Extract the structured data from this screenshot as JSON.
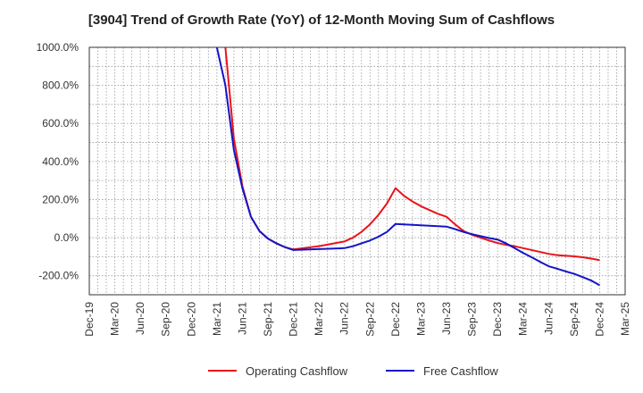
{
  "chart_data": {
    "type": "line",
    "title": "[3904]  Trend of Growth Rate (YoY) of 12-Month Moving Sum of Cashflows",
    "xlabel": "",
    "ylabel": "",
    "ylim": [
      -300,
      1000
    ],
    "grid": true,
    "legend_position": "bottom",
    "y_ticks": [
      "1000.0%",
      "800.0%",
      "600.0%",
      "400.0%",
      "200.0%",
      "0.0%",
      "-200.0%"
    ],
    "y_tick_values": [
      1000,
      800,
      600,
      400,
      200,
      0,
      -200
    ],
    "x_ticks": [
      "Dec-19",
      "Mar-20",
      "Jun-20",
      "Sep-20",
      "Dec-20",
      "Mar-21",
      "Jun-21",
      "Sep-21",
      "Dec-21",
      "Mar-22",
      "Jun-22",
      "Sep-22",
      "Dec-22",
      "Mar-23",
      "Jun-23",
      "Sep-23",
      "Dec-23",
      "Mar-24",
      "Jun-24",
      "Sep-24",
      "Dec-24",
      "Mar-25"
    ],
    "x_months": [
      "2019-12",
      "2020-01",
      "2020-02",
      "2020-03",
      "2020-04",
      "2020-05",
      "2020-06",
      "2020-07",
      "2020-08",
      "2020-09",
      "2020-10",
      "2020-11",
      "2020-12",
      "2021-01",
      "2021-02",
      "2021-03",
      "2021-04",
      "2021-05",
      "2021-06",
      "2021-07",
      "2021-08",
      "2021-09",
      "2021-10",
      "2021-11",
      "2021-12",
      "2022-01",
      "2022-02",
      "2022-03",
      "2022-04",
      "2022-05",
      "2022-06",
      "2022-07",
      "2022-08",
      "2022-09",
      "2022-10",
      "2022-11",
      "2022-12",
      "2023-01",
      "2023-02",
      "2023-03",
      "2023-04",
      "2023-05",
      "2023-06",
      "2023-07",
      "2023-08",
      "2023-09",
      "2023-10",
      "2023-11",
      "2023-12",
      "2024-01",
      "2024-02",
      "2024-03",
      "2024-04",
      "2024-05",
      "2024-06",
      "2024-07",
      "2024-08",
      "2024-09",
      "2024-10",
      "2024-11",
      "2024-12",
      "2025-01",
      "2025-02",
      "2025-03"
    ],
    "series": [
      {
        "name": "Operating Cashflow",
        "color": "#e8141a",
        "points": [
          [
            "2021-04",
            1000
          ],
          [
            "2021-05",
            520
          ],
          [
            "2021-06",
            270
          ],
          [
            "2021-07",
            110
          ],
          [
            "2021-08",
            35
          ],
          [
            "2021-09",
            -5
          ],
          [
            "2021-10",
            -30
          ],
          [
            "2021-11",
            -50
          ],
          [
            "2021-12",
            -62
          ],
          [
            "2022-03",
            -45
          ],
          [
            "2022-06",
            -20
          ],
          [
            "2022-07",
            0
          ],
          [
            "2022-08",
            30
          ],
          [
            "2022-09",
            70
          ],
          [
            "2022-10",
            120
          ],
          [
            "2022-11",
            180
          ],
          [
            "2022-12",
            260
          ],
          [
            "2023-01",
            220
          ],
          [
            "2023-02",
            190
          ],
          [
            "2023-03",
            165
          ],
          [
            "2023-04",
            145
          ],
          [
            "2023-05",
            125
          ],
          [
            "2023-06",
            110
          ],
          [
            "2023-07",
            70
          ],
          [
            "2023-08",
            35
          ],
          [
            "2023-09",
            15
          ],
          [
            "2023-10",
            0
          ],
          [
            "2023-11",
            -15
          ],
          [
            "2023-12",
            -28
          ],
          [
            "2024-01",
            -38
          ],
          [
            "2024-02",
            -45
          ],
          [
            "2024-03",
            -55
          ],
          [
            "2024-04",
            -65
          ],
          [
            "2024-05",
            -75
          ],
          [
            "2024-06",
            -85
          ],
          [
            "2024-07",
            -92
          ],
          [
            "2024-08",
            -95
          ],
          [
            "2024-09",
            -98
          ],
          [
            "2024-10",
            -103
          ],
          [
            "2024-11",
            -110
          ],
          [
            "2024-12",
            -118
          ]
        ]
      },
      {
        "name": "Free Cashflow",
        "color": "#1414c8",
        "points": [
          [
            "2021-03",
            1000
          ],
          [
            "2021-04",
            800
          ],
          [
            "2021-05",
            460
          ],
          [
            "2021-06",
            260
          ],
          [
            "2021-07",
            110
          ],
          [
            "2021-08",
            35
          ],
          [
            "2021-09",
            -5
          ],
          [
            "2021-10",
            -30
          ],
          [
            "2021-11",
            -50
          ],
          [
            "2021-12",
            -65
          ],
          [
            "2022-06",
            -55
          ],
          [
            "2022-07",
            -45
          ],
          [
            "2022-08",
            -30
          ],
          [
            "2022-09",
            -15
          ],
          [
            "2022-10",
            5
          ],
          [
            "2022-11",
            30
          ],
          [
            "2022-12",
            72
          ],
          [
            "2023-03",
            65
          ],
          [
            "2023-06",
            58
          ],
          [
            "2023-07",
            45
          ],
          [
            "2023-08",
            30
          ],
          [
            "2023-09",
            18
          ],
          [
            "2023-10",
            8
          ],
          [
            "2023-11",
            -2
          ],
          [
            "2023-12",
            -10
          ],
          [
            "2024-01",
            -30
          ],
          [
            "2024-02",
            -55
          ],
          [
            "2024-03",
            -80
          ],
          [
            "2024-04",
            -103
          ],
          [
            "2024-05",
            -127
          ],
          [
            "2024-06",
            -150
          ],
          [
            "2024-07",
            -163
          ],
          [
            "2024-08",
            -177
          ],
          [
            "2024-09",
            -190
          ],
          [
            "2024-10",
            -207
          ],
          [
            "2024-11",
            -225
          ],
          [
            "2024-12",
            -250
          ]
        ]
      }
    ]
  }
}
